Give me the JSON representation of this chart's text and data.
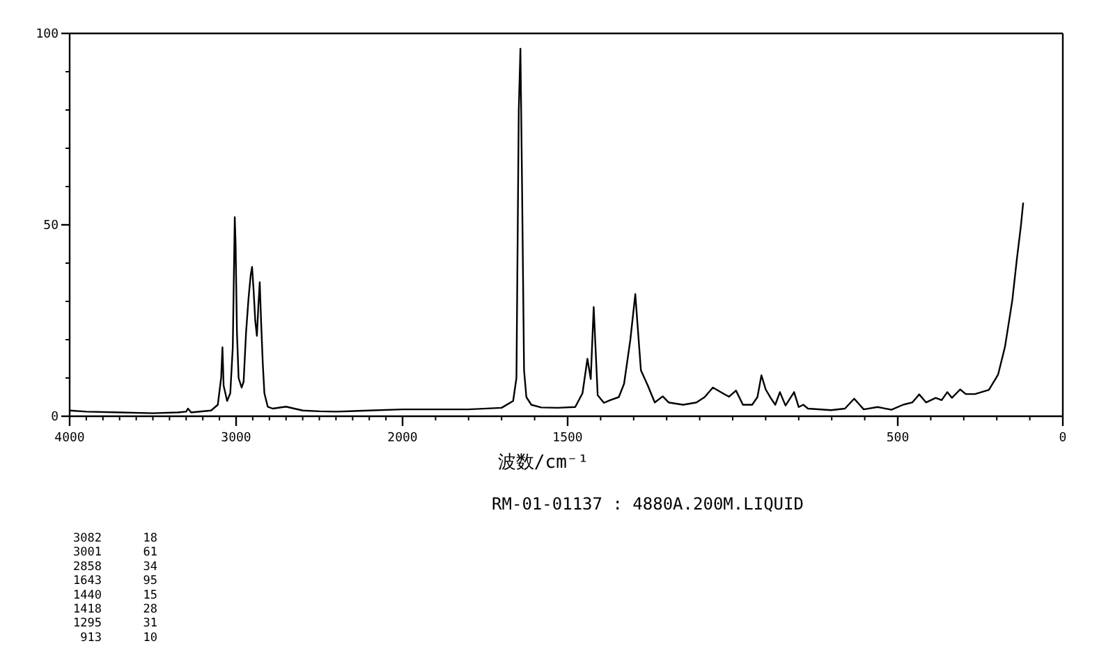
{
  "chart_data": [
    {
      "type": "line",
      "xlim": [
        4000,
        2000
      ],
      "ylim": [
        0,
        100
      ],
      "xticks": [
        4000,
        3000,
        2000
      ],
      "yticks": [
        0,
        50,
        100
      ],
      "color": "#000000",
      "x": [
        4000,
        3900,
        3700,
        3500,
        3350,
        3300,
        3289,
        3270,
        3150,
        3110,
        3090,
        3082,
        3075,
        3054,
        3035,
        3020,
        3008,
        3003,
        2995,
        2985,
        2967,
        2955,
        2940,
        2925,
        2912,
        2904,
        2895,
        2885,
        2875,
        2866,
        2858,
        2850,
        2840,
        2830,
        2810,
        2780,
        2700,
        2600,
        2500,
        2400,
        2200,
        2000
      ],
      "values": [
        1.5,
        1.2,
        1.0,
        0.8,
        1.0,
        1.2,
        2.0,
        1.0,
        1.5,
        3,
        10,
        18,
        8,
        4,
        6,
        18,
        52,
        45,
        22,
        10,
        7.5,
        9,
        22,
        31,
        37,
        39,
        33,
        25,
        21,
        29,
        35,
        25,
        14,
        6,
        2.5,
        2,
        2.5,
        1.5,
        1.3,
        1.2,
        1.5,
        1.8
      ],
      "annotations": [
        "3082",
        "18",
        "3001",
        "61",
        "2858",
        "34",
        "1643",
        "95",
        "1440",
        "15",
        "1418",
        "28",
        "1295",
        "31",
        "913",
        "10"
      ]
    },
    {
      "type": "line",
      "xlim": [
        2000,
        0
      ],
      "ylim": [
        0,
        100
      ],
      "xticks": [
        1500,
        500,
        0
      ],
      "tick_labels": "x",
      "color": "#000000",
      "xlabel": "波数/cm⁻¹",
      "x": [
        2000,
        1800,
        1700,
        1665,
        1655,
        1648,
        1643,
        1638,
        1632,
        1625,
        1610,
        1580,
        1530,
        1477,
        1455,
        1440,
        1430,
        1421,
        1409,
        1390,
        1371,
        1345,
        1329,
        1310,
        1295,
        1278,
        1257,
        1236,
        1212,
        1194,
        1150,
        1110,
        1085,
        1060,
        1030,
        1011,
        990,
        969,
        941,
        925,
        913,
        900,
        885,
        871,
        857,
        840,
        814,
        800,
        786,
        772,
        702,
        660,
        632,
        603,
        561,
        519,
        484,
        456,
        435,
        414,
        385,
        367,
        350,
        336,
        311,
        294,
        266,
        224,
        196,
        175,
        153,
        139,
        127,
        120
      ],
      "values": [
        1.8,
        1.8,
        2.2,
        4,
        10,
        80,
        96,
        60,
        12,
        5,
        3,
        2.3,
        2.2,
        2.4,
        6,
        15,
        9.7,
        28.5,
        5.5,
        3.5,
        4.2,
        5,
        8.5,
        20,
        31.9,
        12,
        8,
        3.6,
        5.2,
        3.6,
        3,
        3.6,
        5,
        7.5,
        6,
        5.1,
        6.7,
        3,
        3,
        5,
        10.7,
        7,
        4.8,
        3,
        6.3,
        2.8,
        6.3,
        2.4,
        3,
        2,
        1.6,
        2,
        4.6,
        1.8,
        2.4,
        1.7,
        3,
        3.6,
        5.7,
        3.6,
        4.8,
        4.2,
        6.3,
        4.8,
        7,
        5.8,
        5.8,
        6.9,
        10.9,
        18.2,
        30.3,
        41.2,
        49.7,
        55.8
      ],
      "annotations": [
        "RM-01-01137 : 4880A.200M.LIQUID"
      ]
    }
  ]
}
